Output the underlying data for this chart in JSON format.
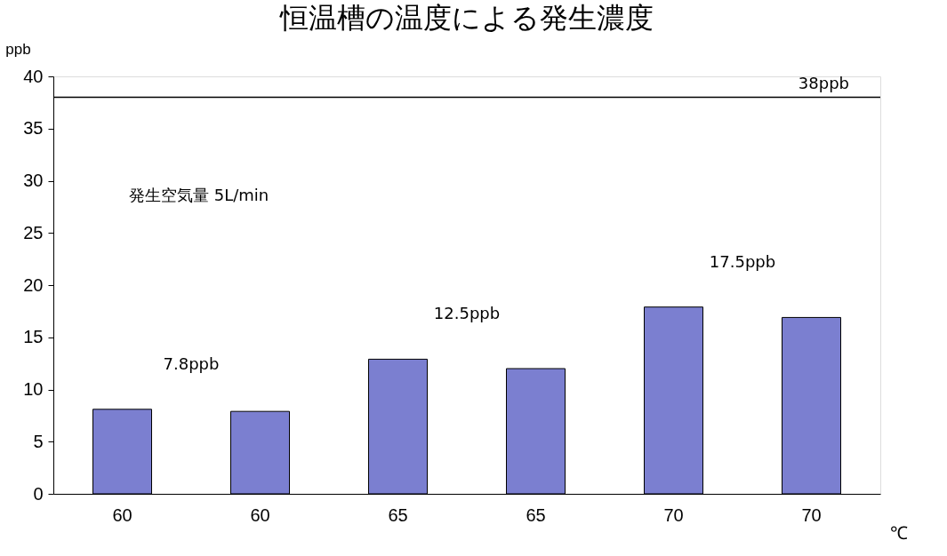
{
  "chart_data": {
    "type": "bar",
    "title": "恒温槽の温度による発生濃度",
    "xlabel": "℃",
    "ylabel": "ppb",
    "categories": [
      "60",
      "60",
      "65",
      "65",
      "70",
      "70"
    ],
    "values": [
      8.1,
      7.9,
      12.9,
      12.0,
      17.9,
      16.9
    ],
    "color": "#7b7fd0",
    "ylim": [
      0,
      40
    ],
    "yticks": [
      0,
      5,
      10,
      15,
      20,
      25,
      30,
      35,
      40
    ],
    "ref_lines": [
      {
        "axis": "y",
        "value": 38,
        "label": "38ppb",
        "color": "#000000"
      }
    ],
    "annotations": [
      "7.8ppb",
      "12.5ppb",
      "17.5ppb",
      "発生空気量  5L/min"
    ],
    "grid": false
  }
}
